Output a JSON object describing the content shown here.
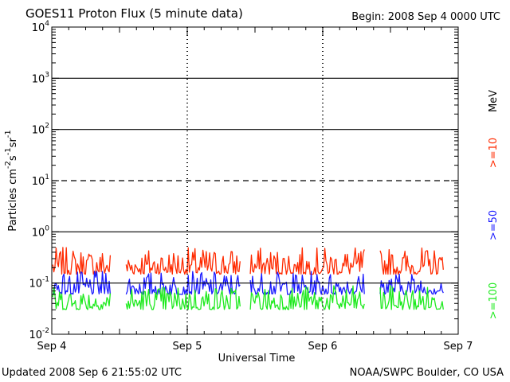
{
  "header": {
    "title": "GOES11 Proton Flux (5 minute data)",
    "begin": "Begin: 2008 Sep 4 0000 UTC"
  },
  "footer": {
    "updated": "Updated 2008 Sep  6 21:55:02 UTC",
    "credit": "NOAA/SWPC Boulder, CO USA"
  },
  "colors": {
    "ge10": "#ff2a00",
    "ge50": "#1a1aff",
    "ge100": "#1eea1e"
  },
  "chart_data": {
    "type": "line",
    "title": "GOES11 Proton Flux (5 minute data)",
    "xlabel": "Universal Time",
    "ylabel": "Particles cm-2s-1sr-1",
    "yscale": "log",
    "ylim": [
      0.01,
      10000
    ],
    "xlim": [
      "2008-09-04 00:00",
      "2008-09-07 00:00"
    ],
    "x_tick_labels": [
      "Sep 4",
      "Sep 5",
      "Sep 6",
      "Sep 7"
    ],
    "y_tick_labels": [
      {
        "base": "10",
        "exp": "-2"
      },
      {
        "base": "10",
        "exp": "-1"
      },
      {
        "base": "10",
        "exp": "0"
      },
      {
        "base": "10",
        "exp": "1"
      },
      {
        "base": "10",
        "exp": "2"
      },
      {
        "base": "10",
        "exp": "3"
      },
      {
        "base": "10",
        "exp": "4"
      }
    ],
    "unit_label": "MeV",
    "data_gaps_utc": [
      [
        "2008-09-04 10:30",
        "2008-09-04 13:00"
      ],
      [
        "2008-09-05 09:30",
        "2008-09-05 11:00"
      ],
      [
        "2008-09-06 07:30",
        "2008-09-06 10:00"
      ]
    ],
    "series": [
      {
        "name": ">=10",
        "level_min": 0.12,
        "level_max": 0.5
      },
      {
        "name": ">=50",
        "level_min": 0.05,
        "level_max": 0.17
      },
      {
        "name": ">=100",
        "level_min": 0.025,
        "level_max": 0.09
      }
    ]
  }
}
